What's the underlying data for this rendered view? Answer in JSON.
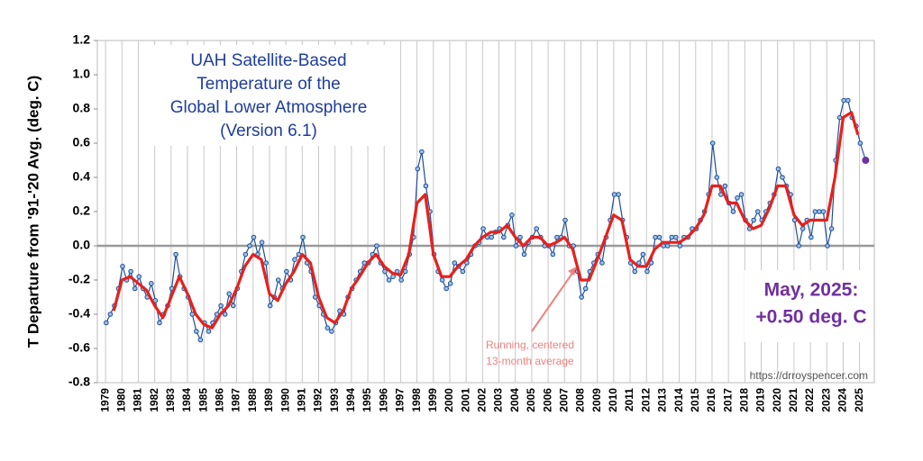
{
  "chart_data": {
    "type": "line",
    "title_lines": [
      "UAH Satellite-Based",
      "Temperature of the",
      "Global Lower Atmosphere",
      "(Version 6.1)"
    ],
    "ylabel": "T Departure from '91-'20 Avg. (deg. C)",
    "annotation_latest": [
      "May, 2025:",
      "+0.50 deg. C"
    ],
    "annotation_average": [
      "Running, centered",
      "13-month average"
    ],
    "source": "https://drroyspencer.com",
    "xlim": [
      1978.5,
      2025.9
    ],
    "xticks": [
      1979,
      1980,
      1981,
      1982,
      1983,
      1984,
      1985,
      1986,
      1987,
      1988,
      1989,
      1990,
      1991,
      1992,
      1993,
      1994,
      1995,
      1996,
      1997,
      1998,
      1999,
      2000,
      2001,
      2002,
      2003,
      2004,
      2005,
      2006,
      2007,
      2008,
      2009,
      2010,
      2011,
      2012,
      2013,
      2014,
      2015,
      2016,
      2017,
      2018,
      2019,
      2020,
      2021,
      2022,
      2023,
      2024,
      2025
    ],
    "ylim": [
      -0.8,
      1.2
    ],
    "yticks": [
      {
        "value": 1.2,
        "label": "1.2"
      },
      {
        "value": 1.0,
        "label": "1.0"
      },
      {
        "value": 0.8,
        "label": "0.8"
      },
      {
        "value": 0.6,
        "label": "0.6"
      },
      {
        "value": 0.4,
        "label": "0.4"
      },
      {
        "value": 0.2,
        "label": "0.2"
      },
      {
        "value": 0.0,
        "label": "0.0"
      },
      {
        "value": -0.2,
        "label": "-0.2"
      },
      {
        "value": -0.4,
        "label": "-0.4"
      },
      {
        "value": -0.6,
        "label": "-0.6"
      },
      {
        "value": -0.8,
        "label": "-0.8"
      }
    ],
    "grid": "x",
    "highlight_color": "#7030a0",
    "series": [
      {
        "color": "#1f4e9a",
        "marker_fill": "#9dc3e6",
        "markers": true,
        "x": [
          1979.04,
          1979.29,
          1979.54,
          1979.79,
          1980.04,
          1980.29,
          1980.54,
          1980.79,
          1981.04,
          1981.29,
          1981.54,
          1981.79,
          1982.04,
          1982.29,
          1982.54,
          1982.79,
          1983.04,
          1983.29,
          1983.54,
          1983.79,
          1984.04,
          1984.29,
          1984.54,
          1984.79,
          1985.04,
          1985.29,
          1985.54,
          1985.79,
          1986.04,
          1986.29,
          1986.54,
          1986.79,
          1987.04,
          1987.29,
          1987.54,
          1987.79,
          1988.04,
          1988.29,
          1988.54,
          1988.79,
          1989.04,
          1989.29,
          1989.54,
          1989.79,
          1990.04,
          1990.29,
          1990.54,
          1990.79,
          1991.04,
          1991.29,
          1991.54,
          1991.79,
          1992.04,
          1992.29,
          1992.54,
          1992.79,
          1993.04,
          1993.29,
          1993.54,
          1993.79,
          1994.04,
          1994.29,
          1994.54,
          1994.79,
          1995.04,
          1995.29,
          1995.54,
          1995.79,
          1996.04,
          1996.29,
          1996.54,
          1996.79,
          1997.04,
          1997.29,
          1997.54,
          1997.79,
          1998.04,
          1998.29,
          1998.54,
          1998.79,
          1999.04,
          1999.29,
          1999.54,
          1999.79,
          2000.04,
          2000.29,
          2000.54,
          2000.79,
          2001.04,
          2001.29,
          2001.54,
          2001.79,
          2002.04,
          2002.29,
          2002.54,
          2002.79,
          2003.04,
          2003.29,
          2003.54,
          2003.79,
          2004.04,
          2004.29,
          2004.54,
          2004.79,
          2005.04,
          2005.29,
          2005.54,
          2005.79,
          2006.04,
          2006.29,
          2006.54,
          2006.79,
          2007.04,
          2007.29,
          2007.54,
          2007.79,
          2008.04,
          2008.29,
          2008.54,
          2008.79,
          2009.04,
          2009.29,
          2009.54,
          2009.79,
          2010.04,
          2010.29,
          2010.54,
          2010.79,
          2011.04,
          2011.29,
          2011.54,
          2011.79,
          2012.04,
          2012.29,
          2012.54,
          2012.79,
          2013.04,
          2013.29,
          2013.54,
          2013.79,
          2014.04,
          2014.29,
          2014.54,
          2014.79,
          2015.04,
          2015.29,
          2015.54,
          2015.79,
          2016.04,
          2016.29,
          2016.54,
          2016.79,
          2017.04,
          2017.29,
          2017.54,
          2017.79,
          2018.04,
          2018.29,
          2018.54,
          2018.79,
          2019.04,
          2019.29,
          2019.54,
          2019.79,
          2020.04,
          2020.29,
          2020.54,
          2020.79,
          2021.04,
          2021.29,
          2021.54,
          2021.79,
          2022.04,
          2022.29,
          2022.54,
          2022.79,
          2023.04,
          2023.29,
          2023.54,
          2023.79,
          2024.04,
          2024.29,
          2024.54,
          2024.79,
          2025.04,
          2025.37
        ],
        "values": [
          -0.45,
          -0.4,
          -0.35,
          -0.25,
          -0.12,
          -0.2,
          -0.15,
          -0.25,
          -0.18,
          -0.25,
          -0.3,
          -0.22,
          -0.32,
          -0.45,
          -0.4,
          -0.35,
          -0.25,
          -0.05,
          -0.18,
          -0.25,
          -0.3,
          -0.4,
          -0.5,
          -0.55,
          -0.45,
          -0.5,
          -0.45,
          -0.4,
          -0.35,
          -0.4,
          -0.28,
          -0.35,
          -0.25,
          -0.15,
          -0.05,
          0.0,
          0.05,
          -0.05,
          0.02,
          -0.1,
          -0.35,
          -0.3,
          -0.2,
          -0.25,
          -0.15,
          -0.2,
          -0.08,
          -0.05,
          0.05,
          -0.1,
          -0.15,
          -0.3,
          -0.35,
          -0.4,
          -0.48,
          -0.5,
          -0.45,
          -0.38,
          -0.4,
          -0.3,
          -0.25,
          -0.2,
          -0.15,
          -0.1,
          -0.1,
          -0.05,
          0.0,
          -0.1,
          -0.15,
          -0.2,
          -0.18,
          -0.15,
          -0.2,
          -0.15,
          -0.05,
          0.05,
          0.45,
          0.55,
          0.35,
          0.2,
          -0.05,
          -0.15,
          -0.2,
          -0.25,
          -0.22,
          -0.1,
          -0.12,
          -0.15,
          -0.1,
          -0.05,
          0.0,
          0.02,
          0.1,
          0.05,
          0.05,
          0.08,
          0.1,
          0.05,
          0.12,
          0.18,
          0.0,
          0.05,
          -0.05,
          0.02,
          0.05,
          0.1,
          0.05,
          0.0,
          0.0,
          -0.05,
          0.05,
          0.05,
          0.15,
          0.0,
          0.0,
          -0.15,
          -0.3,
          -0.25,
          -0.15,
          -0.1,
          -0.05,
          -0.1,
          0.05,
          0.15,
          0.3,
          0.3,
          0.15,
          0.05,
          -0.1,
          -0.15,
          -0.1,
          -0.05,
          -0.15,
          -0.1,
          0.05,
          0.05,
          0.0,
          0.0,
          0.05,
          0.05,
          0.0,
          0.05,
          0.05,
          0.1,
          0.1,
          0.15,
          0.2,
          0.3,
          0.6,
          0.4,
          0.3,
          0.35,
          0.25,
          0.2,
          0.28,
          0.3,
          0.15,
          0.1,
          0.15,
          0.2,
          0.15,
          0.2,
          0.25,
          0.3,
          0.45,
          0.4,
          0.35,
          0.3,
          0.15,
          0.0,
          0.1,
          0.15,
          0.05,
          0.2,
          0.2,
          0.2,
          0.0,
          0.1,
          0.5,
          0.75,
          0.85,
          0.85,
          0.75,
          0.7,
          0.6,
          0.5
        ]
      },
      {
        "color": "#e8201c",
        "markers": false,
        "x": [
          1979.5,
          1980,
          1980.5,
          1981,
          1981.5,
          1982,
          1982.5,
          1983,
          1983.5,
          1984,
          1984.5,
          1985,
          1985.5,
          1986,
          1986.5,
          1987,
          1987.5,
          1988,
          1988.5,
          1989,
          1989.5,
          1990,
          1990.5,
          1991,
          1991.5,
          1992,
          1992.5,
          1993,
          1993.5,
          1994,
          1994.5,
          1995,
          1995.5,
          1996,
          1996.5,
          1997,
          1997.5,
          1998,
          1998.5,
          1999,
          1999.5,
          2000,
          2000.5,
          2001,
          2001.5,
          2002,
          2002.5,
          2003,
          2003.5,
          2004,
          2004.5,
          2005,
          2005.5,
          2006,
          2006.5,
          2007,
          2007.5,
          2008,
          2008.5,
          2009,
          2009.5,
          2010,
          2010.5,
          2011,
          2011.5,
          2012,
          2012.5,
          2013,
          2013.5,
          2014,
          2014.5,
          2015,
          2015.5,
          2016,
          2016.5,
          2017,
          2017.5,
          2018,
          2018.5,
          2019,
          2019.5,
          2020,
          2020.5,
          2021,
          2021.5,
          2022,
          2022.5,
          2023,
          2023.5,
          2024,
          2024.5,
          2024.9
        ],
        "values": [
          -0.38,
          -0.2,
          -0.18,
          -0.22,
          -0.26,
          -0.35,
          -0.42,
          -0.3,
          -0.18,
          -0.28,
          -0.4,
          -0.46,
          -0.48,
          -0.4,
          -0.35,
          -0.25,
          -0.12,
          -0.05,
          -0.08,
          -0.28,
          -0.32,
          -0.22,
          -0.15,
          -0.05,
          -0.1,
          -0.3,
          -0.42,
          -0.45,
          -0.38,
          -0.25,
          -0.18,
          -0.1,
          -0.05,
          -0.12,
          -0.16,
          -0.17,
          -0.05,
          0.25,
          0.3,
          -0.05,
          -0.18,
          -0.18,
          -0.12,
          -0.08,
          0.0,
          0.05,
          0.08,
          0.08,
          0.12,
          0.05,
          0.0,
          0.05,
          0.05,
          0.0,
          0.02,
          0.05,
          -0.02,
          -0.2,
          -0.2,
          -0.08,
          0.05,
          0.18,
          0.15,
          -0.08,
          -0.12,
          -0.12,
          -0.02,
          0.02,
          0.02,
          0.02,
          0.05,
          0.1,
          0.18,
          0.35,
          0.35,
          0.25,
          0.25,
          0.15,
          0.1,
          0.12,
          0.22,
          0.35,
          0.35,
          0.18,
          0.12,
          0.15,
          0.15,
          0.15,
          0.4,
          0.75,
          0.78,
          0.65
        ]
      }
    ]
  }
}
